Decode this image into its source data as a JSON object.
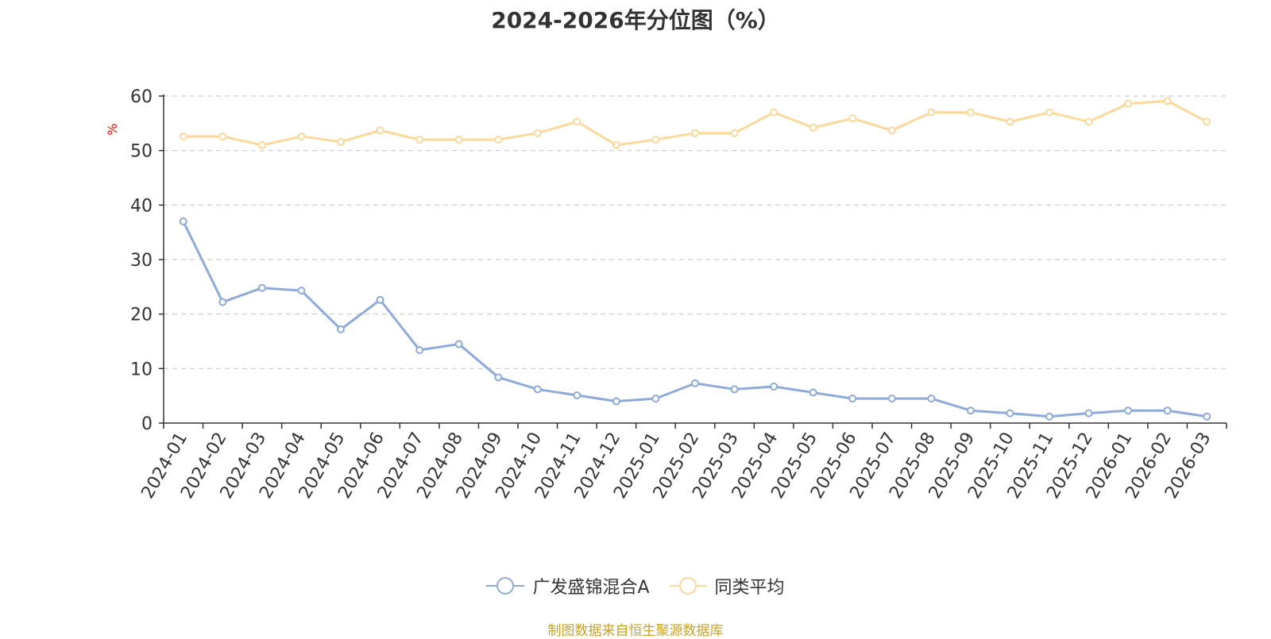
{
  "title": "2024-2026年分位图（%）",
  "source_note": "制图数据来自恒生聚源数据库",
  "colors": {
    "series_a": "#8eaadb",
    "series_b": "#fcd89a",
    "source": "#c9a227",
    "unit": "#ff0000"
  },
  "chart_data": {
    "type": "line",
    "title": "2024-2026年分位图（%）",
    "ylabel": "%",
    "ylim": [
      0,
      60
    ],
    "yticks": [
      0,
      10,
      20,
      30,
      40,
      50,
      60
    ],
    "grid": true,
    "legend_position": "bottom",
    "categories": [
      "2024-01",
      "2024-02",
      "2024-03",
      "2024-04",
      "2024-05",
      "2024-06",
      "2024-07",
      "2024-08",
      "2024-09",
      "2024-10",
      "2024-11",
      "2024-12",
      "2025-01",
      "2025-02",
      "2025-03",
      "2025-04",
      "2025-05",
      "2025-06",
      "2025-07",
      "2025-08",
      "2025-09",
      "2025-10",
      "2025-11",
      "2025-12",
      "2026-01",
      "2026-02",
      "2026-03"
    ],
    "series": [
      {
        "name": "广发盛锦混合A",
        "color": "#8eaadb",
        "values": [
          37,
          22.2,
          24.8,
          24.3,
          17.2,
          22.6,
          13.4,
          14.5,
          8.4,
          6.2,
          5.1,
          4.0,
          4.5,
          7.3,
          6.2,
          6.7,
          5.6,
          4.5,
          4.5,
          4.5,
          2.3,
          1.8,
          1.2,
          1.8,
          2.3,
          2.3,
          1.2
        ]
      },
      {
        "name": "同类平均",
        "color": "#fcd89a",
        "values": [
          52.6,
          52.6,
          51.0,
          52.6,
          51.6,
          53.7,
          52.0,
          52.0,
          52.0,
          53.2,
          55.3,
          51.0,
          52.0,
          53.2,
          53.2,
          57.0,
          54.2,
          55.9,
          53.7,
          57.0,
          57.0,
          55.3,
          57.0,
          55.3,
          58.6,
          59.1,
          55.3
        ]
      }
    ]
  }
}
